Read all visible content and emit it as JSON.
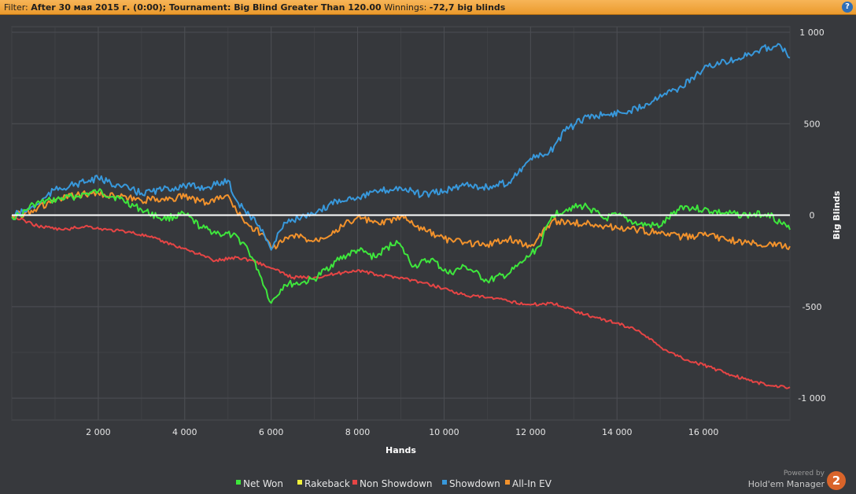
{
  "filter": {
    "prefix": "Filter:",
    "date": "After 30 мая 2015 г. (0:00)",
    "tournament": "Tournament: Big Blind Greater Than 120.00",
    "winnings_label": "Winnings:",
    "winnings_value": "-72,7 big blinds",
    "help_icon": "?"
  },
  "branding": {
    "powered_by": "Powered by",
    "product": "Hold'em Manager",
    "badge": "2",
    "badge_color": "#d9642a"
  },
  "chart_data": {
    "type": "line",
    "xlabel": "Hands",
    "ylabel": "Big Blinds",
    "xlim": [
      0,
      18000
    ],
    "ylim": [
      -1120,
      1030
    ],
    "grid": true,
    "x_ticks": [
      2000,
      4000,
      6000,
      8000,
      10000,
      12000,
      14000,
      16000
    ],
    "x_tick_labels": [
      "2 000",
      "4 000",
      "6 000",
      "8 000",
      "10 000",
      "12 000",
      "14 000",
      "16 000"
    ],
    "y_ticks": [
      1000,
      500,
      0,
      -500,
      -1000
    ],
    "y_tick_labels": [
      "1 000",
      "500",
      "0",
      "-500",
      "-1 000"
    ],
    "legend_position": "bottom-center",
    "series": [
      {
        "name": "Net Won",
        "color": "#3ee63c",
        "x": [
          0,
          200,
          500,
          900,
          1400,
          2000,
          2500,
          3000,
          3500,
          4000,
          4400,
          4800,
          5100,
          5400,
          5700,
          6000,
          6300,
          6700,
          7000,
          7500,
          8000,
          8400,
          8900,
          9300,
          9700,
          10100,
          10500,
          11000,
          11500,
          11800,
          12200,
          12500,
          12900,
          13300,
          13700,
          14000,
          14500,
          15000,
          15500,
          16000,
          16500,
          17000,
          17500,
          18000
        ],
        "y": [
          -10,
          0,
          60,
          80,
          100,
          130,
          90,
          30,
          -20,
          5,
          -70,
          -100,
          -110,
          -160,
          -300,
          -480,
          -380,
          -370,
          -350,
          -250,
          -190,
          -230,
          -140,
          -280,
          -240,
          -320,
          -280,
          -360,
          -320,
          -260,
          -170,
          0,
          40,
          50,
          -20,
          0,
          -50,
          -60,
          50,
          30,
          10,
          0,
          10,
          -80
        ]
      },
      {
        "name": "Rakeback",
        "color": "#f2f23a",
        "x": [
          0,
          18000
        ],
        "y": [
          0,
          0
        ]
      },
      {
        "name": "Non Showdown",
        "color": "#e64545",
        "x": [
          0,
          300,
          600,
          900,
          1200,
          1700,
          2200,
          2700,
          3200,
          3700,
          4200,
          4700,
          5200,
          5600,
          6000,
          6500,
          7000,
          7500,
          8000,
          8500,
          9000,
          9500,
          10000,
          10500,
          11000,
          11500,
          12000,
          12500,
          13000,
          13500,
          14000,
          14500,
          15000,
          15500,
          16000,
          16500,
          17000,
          17500,
          18000
        ],
        "y": [
          -10,
          -30,
          -60,
          -70,
          -80,
          -60,
          -80,
          -90,
          -120,
          -160,
          -200,
          -250,
          -230,
          -250,
          -290,
          -340,
          -340,
          -320,
          -300,
          -330,
          -340,
          -370,
          -400,
          -440,
          -450,
          -470,
          -490,
          -480,
          -520,
          -560,
          -590,
          -630,
          -720,
          -780,
          -820,
          -860,
          -900,
          -930,
          -940
        ]
      },
      {
        "name": "Showdown",
        "color": "#3898db",
        "x": [
          0,
          300,
          600,
          1000,
          1500,
          2000,
          2500,
          3000,
          3500,
          4000,
          4500,
          5000,
          5200,
          5500,
          5800,
          6000,
          6300,
          6700,
          7000,
          7500,
          8000,
          8500,
          9000,
          9500,
          10000,
          10500,
          11000,
          11500,
          12000,
          12400,
          12800,
          13300,
          13800,
          14300,
          14700,
          15000,
          15500,
          16000,
          16500,
          17000,
          17500,
          17800,
          18000
        ],
        "y": [
          0,
          20,
          60,
          140,
          170,
          200,
          160,
          120,
          140,
          160,
          150,
          190,
          80,
          0,
          -80,
          -190,
          -40,
          -10,
          0,
          80,
          100,
          130,
          150,
          110,
          130,
          170,
          150,
          180,
          310,
          330,
          460,
          540,
          550,
          570,
          610,
          660,
          700,
          800,
          840,
          870,
          920,
          920,
          860
        ]
      },
      {
        "name": "All-In EV",
        "color": "#f2922c",
        "x": [
          0,
          300,
          600,
          1000,
          1500,
          2000,
          2500,
          3000,
          3500,
          4000,
          4500,
          5000,
          5200,
          5500,
          5800,
          6000,
          6500,
          7000,
          7500,
          8000,
          8500,
          9000,
          9500,
          10000,
          10500,
          11000,
          11500,
          12000,
          12500,
          13000,
          13500,
          14000,
          14500,
          15000,
          15500,
          16000,
          16500,
          17000,
          17500,
          18000
        ],
        "y": [
          0,
          10,
          40,
          80,
          110,
          120,
          100,
          80,
          90,
          100,
          70,
          110,
          20,
          -60,
          -100,
          -180,
          -110,
          -140,
          -80,
          -10,
          -50,
          -10,
          -80,
          -130,
          -150,
          -160,
          -130,
          -170,
          -30,
          -40,
          -50,
          -70,
          -80,
          -100,
          -120,
          -110,
          -130,
          -150,
          -160,
          -170
        ]
      }
    ]
  }
}
